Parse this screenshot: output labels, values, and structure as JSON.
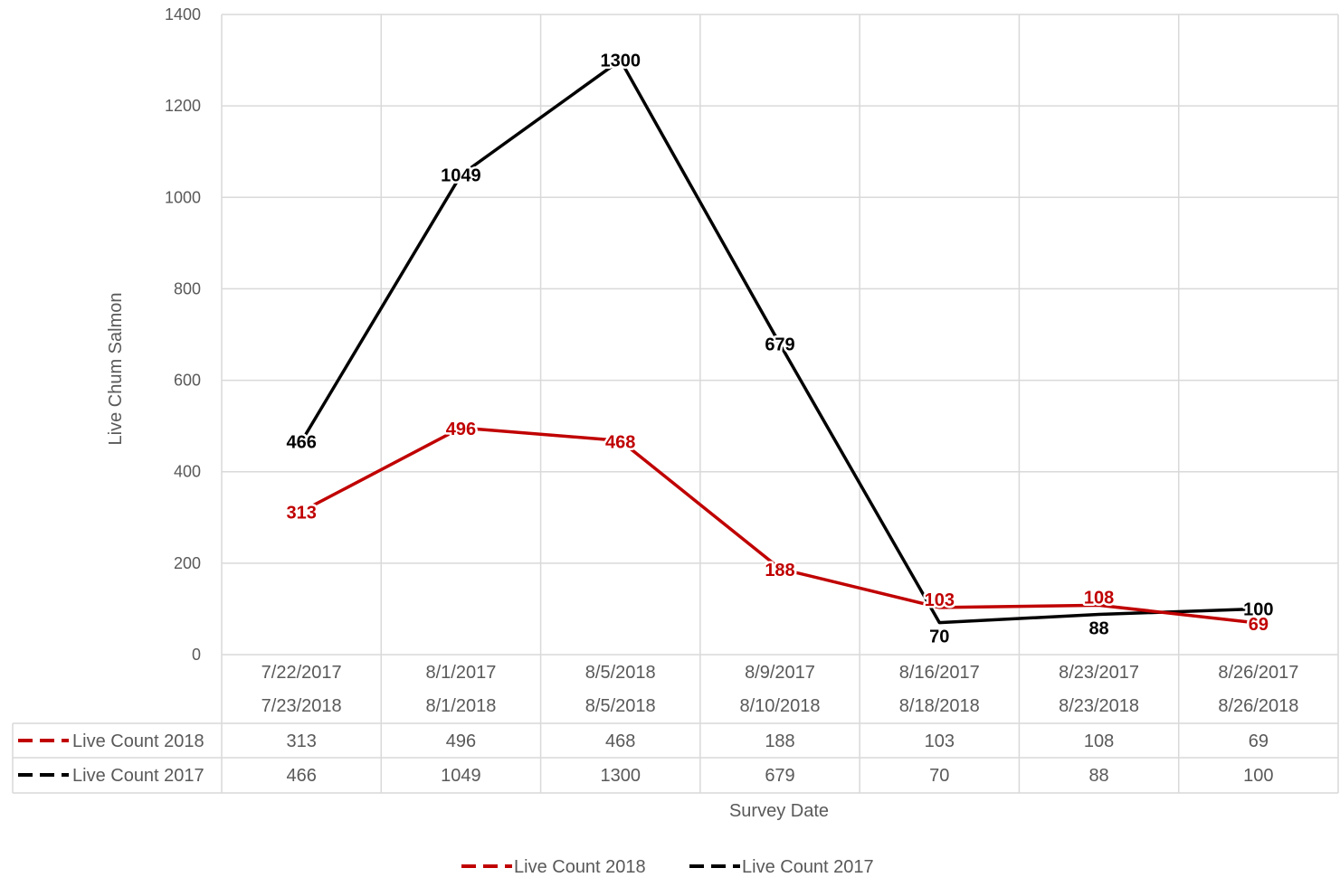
{
  "chart_data": {
    "type": "line",
    "ylabel": "Live Chum Salmon",
    "xlabel": "Survey Date",
    "ylim": [
      0,
      1400
    ],
    "yticks": [
      0,
      200,
      400,
      600,
      800,
      1000,
      1200,
      1400
    ],
    "grid": true,
    "legend_position": "bottom",
    "data_table": true,
    "category_rows": [
      [
        "7/22/2017",
        "8/1/2017",
        "8/5/2018",
        "8/9/2017",
        "8/16/2017",
        "8/23/2017",
        "8/26/2017"
      ],
      [
        "7/23/2018",
        "8/1/2018",
        "8/5/2018",
        "8/10/2018",
        "8/18/2018",
        "8/23/2018",
        "8/26/2018"
      ]
    ],
    "series": [
      {
        "name": "Live Count 2018",
        "color": "#C00000",
        "line_style": "solid",
        "values": [
          313,
          496,
          468,
          188,
          103,
          108,
          69
        ]
      },
      {
        "name": "Live Count 2017",
        "color": "#000000",
        "line_style": "solid",
        "values": [
          466,
          1049,
          1300,
          679,
          70,
          88,
          100
        ]
      }
    ]
  }
}
